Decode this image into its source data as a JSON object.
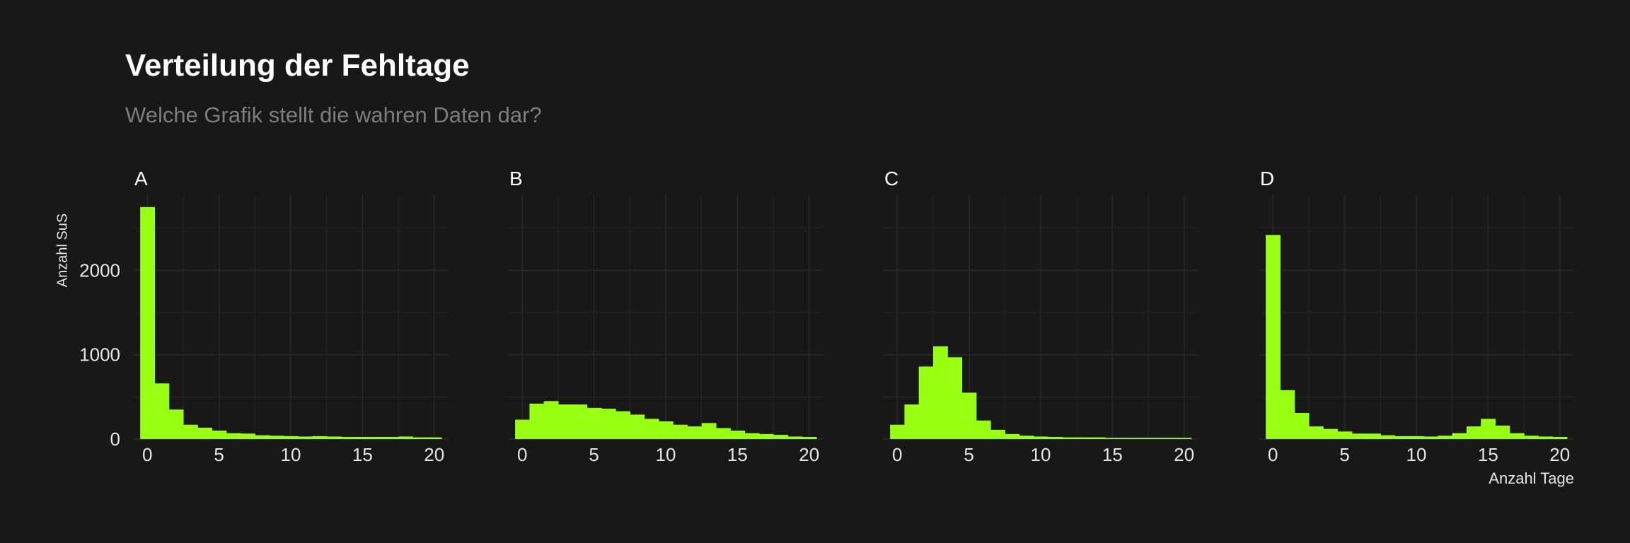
{
  "title": "Verteilung der Fehltage",
  "subtitle": "Welche Grafik stellt die wahren Daten dar?",
  "colors": {
    "background": "#181818",
    "bar": "#99ff12",
    "grid": "#2a2a2a",
    "text": "#e6e6e6",
    "subtitle": "#7d7d7d"
  },
  "chart_data": [
    {
      "type": "bar",
      "facet": "A",
      "x": [
        0,
        1,
        2,
        3,
        4,
        5,
        6,
        7,
        8,
        9,
        10,
        11,
        12,
        13,
        14,
        15,
        16,
        17,
        18,
        19,
        20
      ],
      "values": [
        2750,
        660,
        350,
        170,
        135,
        100,
        70,
        65,
        45,
        40,
        35,
        30,
        35,
        30,
        25,
        25,
        25,
        25,
        30,
        20,
        20
      ],
      "xlim": [
        -1,
        21
      ],
      "ylim": [
        0,
        2900
      ],
      "x_ticks": [
        "0",
        "5",
        "10",
        "15",
        "20"
      ],
      "y_ticks": [
        "0",
        "1000",
        "2000"
      ],
      "xlabel": "",
      "ylabel": "Anzahl SuS",
      "grid": true
    },
    {
      "type": "bar",
      "facet": "B",
      "x": [
        0,
        1,
        2,
        3,
        4,
        5,
        6,
        7,
        8,
        9,
        10,
        11,
        12,
        13,
        14,
        15,
        16,
        17,
        18,
        19,
        20
      ],
      "values": [
        230,
        420,
        450,
        410,
        410,
        370,
        360,
        330,
        290,
        240,
        210,
        170,
        150,
        190,
        130,
        100,
        70,
        60,
        50,
        30,
        25
      ],
      "xlim": [
        -1,
        21
      ],
      "ylim": [
        0,
        2900
      ],
      "x_ticks": [
        "0",
        "5",
        "10",
        "15",
        "20"
      ],
      "grid": true
    },
    {
      "type": "bar",
      "facet": "C",
      "x": [
        0,
        1,
        2,
        3,
        4,
        5,
        6,
        7,
        8,
        9,
        10,
        11,
        12,
        13,
        14,
        15,
        16,
        17,
        18,
        19,
        20
      ],
      "values": [
        170,
        410,
        860,
        1100,
        970,
        550,
        220,
        110,
        60,
        40,
        30,
        25,
        20,
        20,
        20,
        15,
        15,
        15,
        15,
        15,
        15
      ],
      "xlim": [
        -1,
        21
      ],
      "ylim": [
        0,
        2900
      ],
      "x_ticks": [
        "0",
        "5",
        "10",
        "15",
        "20"
      ],
      "grid": true
    },
    {
      "type": "bar",
      "facet": "D",
      "x": [
        0,
        1,
        2,
        3,
        4,
        5,
        6,
        7,
        8,
        9,
        10,
        11,
        12,
        13,
        14,
        15,
        16,
        17,
        18,
        19,
        20
      ],
      "values": [
        2420,
        580,
        310,
        150,
        120,
        90,
        65,
        65,
        45,
        35,
        35,
        30,
        40,
        70,
        150,
        240,
        160,
        70,
        40,
        30,
        25
      ],
      "xlim": [
        -1,
        21
      ],
      "ylim": [
        0,
        2900
      ],
      "x_ticks": [
        "0",
        "5",
        "10",
        "15",
        "20"
      ],
      "xlabel": "Anzahl Tage",
      "grid": true
    }
  ]
}
